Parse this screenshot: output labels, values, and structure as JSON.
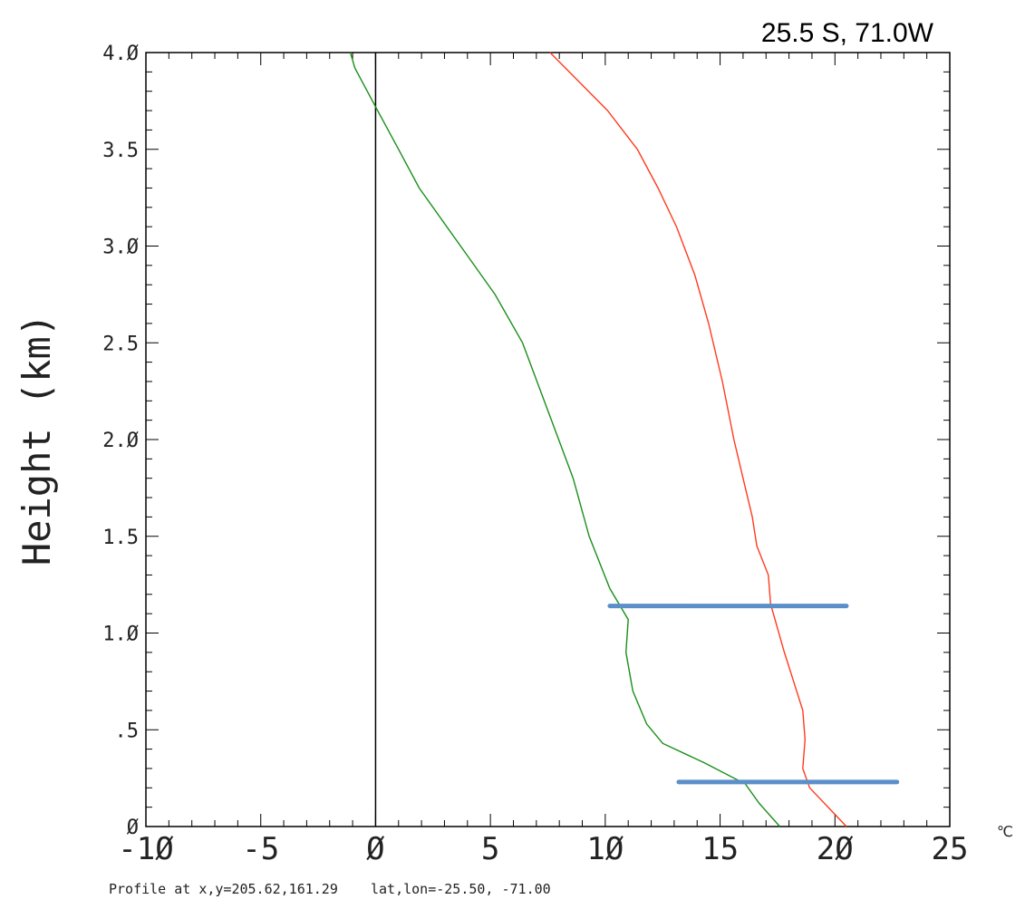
{
  "chart_data": {
    "type": "line",
    "title": "25.5 S, 71.0W",
    "ylabel": "Height (km)",
    "xunit": "℃",
    "footer": "Profile at x,y=205.62,161.29    lat,lon=-25.50, -71.00",
    "xlim": [
      -10,
      25
    ],
    "ylim": [
      0,
      4.0
    ],
    "xticks": [
      -10,
      -5,
      0,
      5,
      10,
      15,
      20,
      25
    ],
    "xtick_labels": [
      "-1Ø",
      "-5",
      "Ø",
      "5",
      "1Ø",
      "15",
      "2Ø",
      "25"
    ],
    "yticks": [
      0,
      0.5,
      1.0,
      1.5,
      2.0,
      2.5,
      3.0,
      3.5,
      4.0
    ],
    "ytick_labels": [
      "Ø",
      ".5",
      "1.Ø",
      "1.5",
      "2.Ø",
      "2.5",
      "3.Ø",
      "3.5",
      "4.Ø"
    ],
    "grid": false,
    "reference_line": {
      "x": 0,
      "color": "#000000"
    },
    "series": [
      {
        "color": "#ff3b1f",
        "points": [
          [
            20.5,
            0.0
          ],
          [
            19.7,
            0.1
          ],
          [
            18.9,
            0.2
          ],
          [
            18.6,
            0.3
          ],
          [
            18.7,
            0.45
          ],
          [
            18.6,
            0.6
          ],
          [
            18.2,
            0.75
          ],
          [
            17.8,
            0.9
          ],
          [
            17.2,
            1.15
          ],
          [
            17.1,
            1.3
          ],
          [
            16.6,
            1.45
          ],
          [
            16.4,
            1.6
          ],
          [
            16.0,
            1.8
          ],
          [
            15.6,
            2.0
          ],
          [
            15.1,
            2.3
          ],
          [
            14.5,
            2.6
          ],
          [
            13.9,
            2.85
          ],
          [
            13.1,
            3.1
          ],
          [
            12.3,
            3.3
          ],
          [
            11.4,
            3.5
          ],
          [
            10.1,
            3.7
          ],
          [
            8.6,
            3.88
          ],
          [
            7.6,
            4.0
          ]
        ]
      },
      {
        "color": "#1a8f1a",
        "points": [
          [
            17.6,
            0.0
          ],
          [
            16.7,
            0.12
          ],
          [
            16.1,
            0.22
          ],
          [
            14.3,
            0.33
          ],
          [
            12.5,
            0.43
          ],
          [
            11.8,
            0.53
          ],
          [
            11.2,
            0.7
          ],
          [
            10.9,
            0.9
          ],
          [
            11.0,
            1.07
          ],
          [
            10.2,
            1.23
          ],
          [
            9.3,
            1.5
          ],
          [
            8.6,
            1.8
          ],
          [
            7.5,
            2.15
          ],
          [
            6.4,
            2.5
          ],
          [
            5.2,
            2.75
          ],
          [
            3.7,
            3.0
          ],
          [
            1.9,
            3.3
          ],
          [
            1.0,
            3.5
          ],
          [
            0.0,
            3.72
          ],
          [
            -0.9,
            3.92
          ],
          [
            -1.1,
            4.0
          ]
        ]
      }
    ],
    "highlight_lines": [
      {
        "y": 1.14,
        "x1": 10.2,
        "x2": 20.5,
        "color": "#5b8fc9"
      },
      {
        "y": 0.23,
        "x1": 13.2,
        "x2": 22.7,
        "color": "#5b8fc9"
      }
    ]
  }
}
